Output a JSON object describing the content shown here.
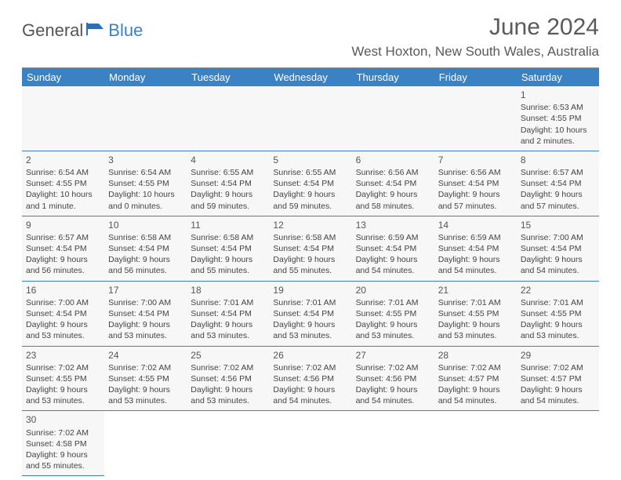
{
  "logo": {
    "textA": "General",
    "textB": "Blue"
  },
  "title": "June 2024",
  "location": "West Hoxton, New South Wales, Australia",
  "weekdays": [
    "Sunday",
    "Monday",
    "Tuesday",
    "Wednesday",
    "Thursday",
    "Friday",
    "Saturday"
  ],
  "colors": {
    "header_bg": "#3b82c4",
    "header_text": "#ffffff",
    "cell_bg": "#f7f7f7",
    "border": "#3b82c4",
    "text": "#444444",
    "title_text": "#5a5a5a"
  },
  "days": [
    {
      "n": "1",
      "sunrise": "Sunrise: 6:53 AM",
      "sunset": "Sunset: 4:55 PM",
      "daylight1": "Daylight: 10 hours",
      "daylight2": "and 2 minutes."
    },
    {
      "n": "2",
      "sunrise": "Sunrise: 6:54 AM",
      "sunset": "Sunset: 4:55 PM",
      "daylight1": "Daylight: 10 hours",
      "daylight2": "and 1 minute."
    },
    {
      "n": "3",
      "sunrise": "Sunrise: 6:54 AM",
      "sunset": "Sunset: 4:55 PM",
      "daylight1": "Daylight: 10 hours",
      "daylight2": "and 0 minutes."
    },
    {
      "n": "4",
      "sunrise": "Sunrise: 6:55 AM",
      "sunset": "Sunset: 4:54 PM",
      "daylight1": "Daylight: 9 hours",
      "daylight2": "and 59 minutes."
    },
    {
      "n": "5",
      "sunrise": "Sunrise: 6:55 AM",
      "sunset": "Sunset: 4:54 PM",
      "daylight1": "Daylight: 9 hours",
      "daylight2": "and 59 minutes."
    },
    {
      "n": "6",
      "sunrise": "Sunrise: 6:56 AM",
      "sunset": "Sunset: 4:54 PM",
      "daylight1": "Daylight: 9 hours",
      "daylight2": "and 58 minutes."
    },
    {
      "n": "7",
      "sunrise": "Sunrise: 6:56 AM",
      "sunset": "Sunset: 4:54 PM",
      "daylight1": "Daylight: 9 hours",
      "daylight2": "and 57 minutes."
    },
    {
      "n": "8",
      "sunrise": "Sunrise: 6:57 AM",
      "sunset": "Sunset: 4:54 PM",
      "daylight1": "Daylight: 9 hours",
      "daylight2": "and 57 minutes."
    },
    {
      "n": "9",
      "sunrise": "Sunrise: 6:57 AM",
      "sunset": "Sunset: 4:54 PM",
      "daylight1": "Daylight: 9 hours",
      "daylight2": "and 56 minutes."
    },
    {
      "n": "10",
      "sunrise": "Sunrise: 6:58 AM",
      "sunset": "Sunset: 4:54 PM",
      "daylight1": "Daylight: 9 hours",
      "daylight2": "and 56 minutes."
    },
    {
      "n": "11",
      "sunrise": "Sunrise: 6:58 AM",
      "sunset": "Sunset: 4:54 PM",
      "daylight1": "Daylight: 9 hours",
      "daylight2": "and 55 minutes."
    },
    {
      "n": "12",
      "sunrise": "Sunrise: 6:58 AM",
      "sunset": "Sunset: 4:54 PM",
      "daylight1": "Daylight: 9 hours",
      "daylight2": "and 55 minutes."
    },
    {
      "n": "13",
      "sunrise": "Sunrise: 6:59 AM",
      "sunset": "Sunset: 4:54 PM",
      "daylight1": "Daylight: 9 hours",
      "daylight2": "and 54 minutes."
    },
    {
      "n": "14",
      "sunrise": "Sunrise: 6:59 AM",
      "sunset": "Sunset: 4:54 PM",
      "daylight1": "Daylight: 9 hours",
      "daylight2": "and 54 minutes."
    },
    {
      "n": "15",
      "sunrise": "Sunrise: 7:00 AM",
      "sunset": "Sunset: 4:54 PM",
      "daylight1": "Daylight: 9 hours",
      "daylight2": "and 54 minutes."
    },
    {
      "n": "16",
      "sunrise": "Sunrise: 7:00 AM",
      "sunset": "Sunset: 4:54 PM",
      "daylight1": "Daylight: 9 hours",
      "daylight2": "and 53 minutes."
    },
    {
      "n": "17",
      "sunrise": "Sunrise: 7:00 AM",
      "sunset": "Sunset: 4:54 PM",
      "daylight1": "Daylight: 9 hours",
      "daylight2": "and 53 minutes."
    },
    {
      "n": "18",
      "sunrise": "Sunrise: 7:01 AM",
      "sunset": "Sunset: 4:54 PM",
      "daylight1": "Daylight: 9 hours",
      "daylight2": "and 53 minutes."
    },
    {
      "n": "19",
      "sunrise": "Sunrise: 7:01 AM",
      "sunset": "Sunset: 4:54 PM",
      "daylight1": "Daylight: 9 hours",
      "daylight2": "and 53 minutes."
    },
    {
      "n": "20",
      "sunrise": "Sunrise: 7:01 AM",
      "sunset": "Sunset: 4:55 PM",
      "daylight1": "Daylight: 9 hours",
      "daylight2": "and 53 minutes."
    },
    {
      "n": "21",
      "sunrise": "Sunrise: 7:01 AM",
      "sunset": "Sunset: 4:55 PM",
      "daylight1": "Daylight: 9 hours",
      "daylight2": "and 53 minutes."
    },
    {
      "n": "22",
      "sunrise": "Sunrise: 7:01 AM",
      "sunset": "Sunset: 4:55 PM",
      "daylight1": "Daylight: 9 hours",
      "daylight2": "and 53 minutes."
    },
    {
      "n": "23",
      "sunrise": "Sunrise: 7:02 AM",
      "sunset": "Sunset: 4:55 PM",
      "daylight1": "Daylight: 9 hours",
      "daylight2": "and 53 minutes."
    },
    {
      "n": "24",
      "sunrise": "Sunrise: 7:02 AM",
      "sunset": "Sunset: 4:55 PM",
      "daylight1": "Daylight: 9 hours",
      "daylight2": "and 53 minutes."
    },
    {
      "n": "25",
      "sunrise": "Sunrise: 7:02 AM",
      "sunset": "Sunset: 4:56 PM",
      "daylight1": "Daylight: 9 hours",
      "daylight2": "and 53 minutes."
    },
    {
      "n": "26",
      "sunrise": "Sunrise: 7:02 AM",
      "sunset": "Sunset: 4:56 PM",
      "daylight1": "Daylight: 9 hours",
      "daylight2": "and 54 minutes."
    },
    {
      "n": "27",
      "sunrise": "Sunrise: 7:02 AM",
      "sunset": "Sunset: 4:56 PM",
      "daylight1": "Daylight: 9 hours",
      "daylight2": "and 54 minutes."
    },
    {
      "n": "28",
      "sunrise": "Sunrise: 7:02 AM",
      "sunset": "Sunset: 4:57 PM",
      "daylight1": "Daylight: 9 hours",
      "daylight2": "and 54 minutes."
    },
    {
      "n": "29",
      "sunrise": "Sunrise: 7:02 AM",
      "sunset": "Sunset: 4:57 PM",
      "daylight1": "Daylight: 9 hours",
      "daylight2": "and 54 minutes."
    },
    {
      "n": "30",
      "sunrise": "Sunrise: 7:02 AM",
      "sunset": "Sunset: 4:58 PM",
      "daylight1": "Daylight: 9 hours",
      "daylight2": "and 55 minutes."
    }
  ]
}
